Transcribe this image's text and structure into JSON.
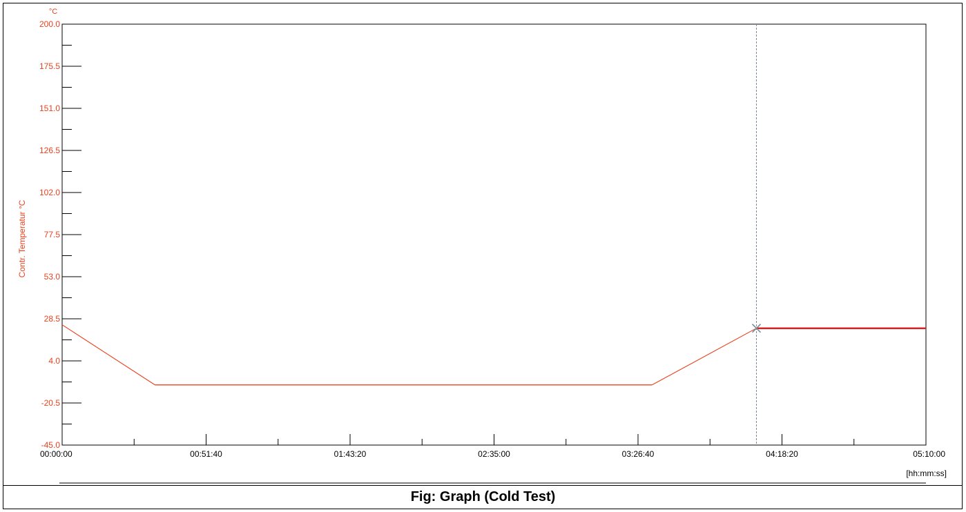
{
  "caption": "Fig: Graph (Cold Test)",
  "chart_data": {
    "type": "line",
    "title": "",
    "ylabel": "Contr. Temperatur °C",
    "yunit": "°C",
    "xunit": "[hh:mm:ss]",
    "ylim": [
      -45.0,
      200.0
    ],
    "xlim_seconds": [
      0,
      18600
    ],
    "y_ticks": [
      "200.0",
      "175.5",
      "151.0",
      "126.5",
      "102.0",
      "77.5",
      "53.0",
      "28.5",
      "4.0",
      "-20.5",
      "-45.0"
    ],
    "x_ticks": [
      {
        "label": "00:00:00",
        "t": 0
      },
      {
        "label": "00:51:40",
        "t": 3100
      },
      {
        "label": "01:43:20",
        "t": 6200
      },
      {
        "label": "02:35:00",
        "t": 9300
      },
      {
        "label": "03:26:40",
        "t": 12400
      },
      {
        "label": "04:18:20",
        "t": 15500
      },
      {
        "label": "05:10:00",
        "t": 18600
      }
    ],
    "grid": false,
    "legend": "none",
    "series": [
      {
        "x": [
          0,
          2000,
          12700,
          14950,
          18600
        ],
        "y": [
          25,
          -10,
          -10,
          23,
          23
        ]
      }
    ],
    "cursor": {
      "x": 14950,
      "y": 23
    },
    "colors": {
      "axis_text": "#e8421e",
      "line": "#e8421e",
      "line_thick": "#e02020",
      "cursor": "#7a8a96",
      "axis": "#000000"
    }
  }
}
